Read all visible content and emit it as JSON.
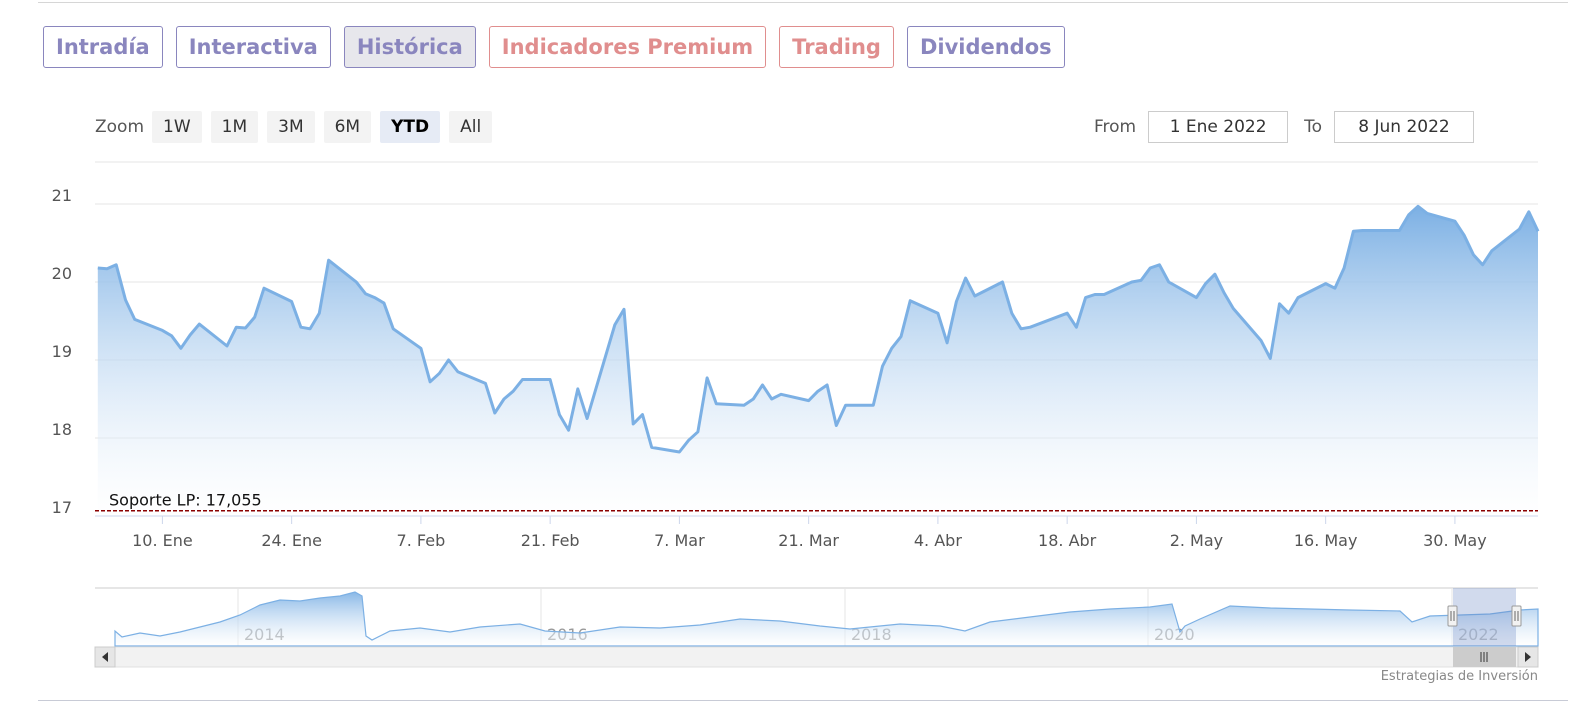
{
  "tabs": [
    {
      "label": "Intradía",
      "style": "normal"
    },
    {
      "label": "Interactiva",
      "style": "normal"
    },
    {
      "label": "Histórica",
      "style": "active"
    },
    {
      "label": "Indicadores Premium",
      "style": "premium"
    },
    {
      "label": "Trading",
      "style": "premium"
    },
    {
      "label": "Dividendos",
      "style": "normal"
    }
  ],
  "zoom": {
    "label": "Zoom",
    "buttons": [
      "1W",
      "1M",
      "3M",
      "6M",
      "YTD",
      "All"
    ],
    "selected": "YTD"
  },
  "range": {
    "from_label": "From",
    "from_value": "1 Ene 2022",
    "to_label": "To",
    "to_value": "8 Jun 2022"
  },
  "credit": "Estrategias de Inversión",
  "colors": {
    "line": "#7cb0e4",
    "area_top": "#7cb0e4",
    "area_bottom": "#ffffff",
    "support_line": "#8b0000",
    "tab_accent": "#8a86be",
    "tab_premium": "#e08e8e"
  },
  "chart_data": {
    "type": "area",
    "ylim": [
      17,
      21.5
    ],
    "y_ticks": [
      17,
      18,
      19,
      20,
      21
    ],
    "x_ticks": [
      {
        "date": "2022-01-10",
        "label": "10. Ene"
      },
      {
        "date": "2022-01-24",
        "label": "24. Ene"
      },
      {
        "date": "2022-02-07",
        "label": "7. Feb"
      },
      {
        "date": "2022-02-21",
        "label": "21. Feb"
      },
      {
        "date": "2022-03-07",
        "label": "7. Mar"
      },
      {
        "date": "2022-03-21",
        "label": "21. Mar"
      },
      {
        "date": "2022-04-04",
        "label": "4. Abr"
      },
      {
        "date": "2022-04-18",
        "label": "18. Abr"
      },
      {
        "date": "2022-05-02",
        "label": "2. May"
      },
      {
        "date": "2022-05-16",
        "label": "16. May"
      },
      {
        "date": "2022-05-30",
        "label": "30. May"
      }
    ],
    "grid": true,
    "plot_line": {
      "value": 17.055,
      "label": "Soporte LP: 17,055",
      "style": "dashed"
    },
    "series": [
      {
        "points": [
          [
            "2022-01-03",
            20.18
          ],
          [
            "2022-01-04",
            20.17
          ],
          [
            "2022-01-05",
            20.22
          ],
          [
            "2022-01-06",
            19.77
          ],
          [
            "2022-01-07",
            19.52
          ],
          [
            "2022-01-10",
            19.38
          ],
          [
            "2022-01-11",
            19.31
          ],
          [
            "2022-01-12",
            19.15
          ],
          [
            "2022-01-13",
            19.32
          ],
          [
            "2022-01-14",
            19.46
          ],
          [
            "2022-01-17",
            19.18
          ],
          [
            "2022-01-18",
            19.42
          ],
          [
            "2022-01-19",
            19.41
          ],
          [
            "2022-01-20",
            19.55
          ],
          [
            "2022-01-21",
            19.92
          ],
          [
            "2022-01-24",
            19.75
          ],
          [
            "2022-01-25",
            19.42
          ],
          [
            "2022-01-26",
            19.4
          ],
          [
            "2022-01-27",
            19.6
          ],
          [
            "2022-01-28",
            20.28
          ],
          [
            "2022-01-31",
            20.0
          ],
          [
            "2022-02-01",
            19.85
          ],
          [
            "2022-02-02",
            19.8
          ],
          [
            "2022-02-03",
            19.73
          ],
          [
            "2022-02-04",
            19.4
          ],
          [
            "2022-02-07",
            19.15
          ],
          [
            "2022-02-08",
            18.72
          ],
          [
            "2022-02-09",
            18.83
          ],
          [
            "2022-02-10",
            19.0
          ],
          [
            "2022-02-11",
            18.85
          ],
          [
            "2022-02-14",
            18.7
          ],
          [
            "2022-02-15",
            18.32
          ],
          [
            "2022-02-16",
            18.5
          ],
          [
            "2022-02-17",
            18.6
          ],
          [
            "2022-02-18",
            18.75
          ],
          [
            "2022-02-21",
            18.75
          ],
          [
            "2022-02-22",
            18.3
          ],
          [
            "2022-02-23",
            18.1
          ],
          [
            "2022-02-24",
            18.63
          ],
          [
            "2022-02-25",
            18.25
          ],
          [
            "2022-02-28",
            19.45
          ],
          [
            "2022-03-01",
            19.65
          ],
          [
            "2022-03-02",
            18.18
          ],
          [
            "2022-03-03",
            18.3
          ],
          [
            "2022-03-04",
            17.88
          ],
          [
            "2022-03-07",
            17.82
          ],
          [
            "2022-03-08",
            17.97
          ],
          [
            "2022-03-09",
            18.08
          ],
          [
            "2022-03-10",
            18.77
          ],
          [
            "2022-03-11",
            18.44
          ],
          [
            "2022-03-14",
            18.42
          ],
          [
            "2022-03-15",
            18.5
          ],
          [
            "2022-03-16",
            18.68
          ],
          [
            "2022-03-17",
            18.5
          ],
          [
            "2022-03-18",
            18.56
          ],
          [
            "2022-03-21",
            18.48
          ],
          [
            "2022-03-22",
            18.6
          ],
          [
            "2022-03-23",
            18.68
          ],
          [
            "2022-03-24",
            18.16
          ],
          [
            "2022-03-25",
            18.42
          ],
          [
            "2022-03-28",
            18.42
          ],
          [
            "2022-03-29",
            18.92
          ],
          [
            "2022-03-30",
            19.15
          ],
          [
            "2022-03-31",
            19.3
          ],
          [
            "2022-04-01",
            19.76
          ],
          [
            "2022-04-04",
            19.6
          ],
          [
            "2022-04-05",
            19.22
          ],
          [
            "2022-04-06",
            19.75
          ],
          [
            "2022-04-07",
            20.05
          ],
          [
            "2022-04-08",
            19.82
          ],
          [
            "2022-04-11",
            20.0
          ],
          [
            "2022-04-12",
            19.6
          ],
          [
            "2022-04-13",
            19.4
          ],
          [
            "2022-04-14",
            19.42
          ],
          [
            "2022-04-18",
            19.6
          ],
          [
            "2022-04-19",
            19.42
          ],
          [
            "2022-04-20",
            19.8
          ],
          [
            "2022-04-21",
            19.84
          ],
          [
            "2022-04-22",
            19.84
          ],
          [
            "2022-04-25",
            20.0
          ],
          [
            "2022-04-26",
            20.02
          ],
          [
            "2022-04-27",
            20.18
          ],
          [
            "2022-04-28",
            20.22
          ],
          [
            "2022-04-29",
            20.0
          ],
          [
            "2022-05-02",
            19.8
          ],
          [
            "2022-05-03",
            19.98
          ],
          [
            "2022-05-04",
            20.1
          ],
          [
            "2022-05-05",
            19.86
          ],
          [
            "2022-05-06",
            19.66
          ],
          [
            "2022-05-09",
            19.25
          ],
          [
            "2022-05-10",
            19.02
          ],
          [
            "2022-05-11",
            19.72
          ],
          [
            "2022-05-12",
            19.6
          ],
          [
            "2022-05-13",
            19.8
          ],
          [
            "2022-05-16",
            19.98
          ],
          [
            "2022-05-17",
            19.92
          ],
          [
            "2022-05-18",
            20.18
          ],
          [
            "2022-05-19",
            20.65
          ],
          [
            "2022-05-20",
            20.66
          ],
          [
            "2022-05-23",
            20.66
          ],
          [
            "2022-05-24",
            20.66
          ],
          [
            "2022-05-25",
            20.86
          ],
          [
            "2022-05-26",
            20.97
          ],
          [
            "2022-05-27",
            20.88
          ],
          [
            "2022-05-30",
            20.78
          ],
          [
            "2022-05-31",
            20.6
          ],
          [
            "2022-06-01",
            20.35
          ],
          [
            "2022-06-02",
            20.22
          ],
          [
            "2022-06-03",
            20.4
          ],
          [
            "2022-06-06",
            20.68
          ],
          [
            "2022-06-07",
            20.9
          ],
          [
            "2022-06-08",
            20.65
          ]
        ]
      }
    ],
    "navigator": {
      "year_labels": [
        "2014",
        "2016",
        "2018",
        "2020",
        "2022"
      ],
      "selected_range": [
        "2022-01-01",
        "2022-06-08"
      ]
    }
  }
}
